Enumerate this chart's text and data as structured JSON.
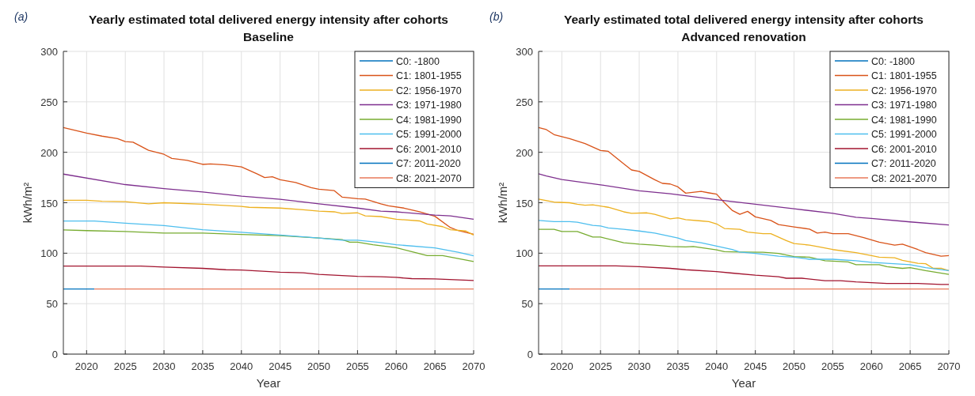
{
  "chart_data": [
    {
      "type": "line",
      "title": "Yearly estimated total delivered energy intensity after cohorts",
      "subtitle": "Baseline",
      "xlabel": "Year",
      "ylabel": "kWh/m²",
      "annotations": [
        "(a)"
      ],
      "xlim": [
        2017,
        2070
      ],
      "xticks": [
        2020,
        2025,
        2030,
        2035,
        2040,
        2045,
        2050,
        2055,
        2060,
        2065,
        2070
      ],
      "ylim": [
        0,
        300
      ],
      "yticks": [
        0,
        50,
        100,
        150,
        200,
        250,
        300
      ],
      "grid": true,
      "legend": "top right",
      "series": [
        {
          "name": "C0: -1800",
          "color": "#0072bd"
        },
        {
          "name": "C1: 1801-1955",
          "color": "#d95319",
          "x": [
            2017,
            2020,
            2022,
            2024,
            2025,
            2026,
            2028,
            2030,
            2031,
            2033,
            2035,
            2036,
            2038,
            2040,
            2042,
            2043,
            2044,
            2045,
            2047,
            2049,
            2050,
            2052,
            2053,
            2055,
            2056,
            2058,
            2059,
            2061,
            2063,
            2065,
            2067,
            2068,
            2070
          ],
          "values": [
            224.6,
            219,
            216,
            213.6,
            210.6,
            210,
            202,
            198,
            194,
            192,
            188,
            188.5,
            187.5,
            185.5,
            178.7,
            175,
            175.7,
            172.8,
            170,
            165,
            163.4,
            162,
            155.6,
            154,
            153.6,
            149,
            147,
            144.7,
            141,
            136.6,
            125.4,
            122.4,
            118.8
          ]
        },
        {
          "name": "C2: 1956-1970",
          "color": "#edb120",
          "x": [
            2017,
            2020,
            2022,
            2025,
            2028,
            2030,
            2035,
            2040,
            2041,
            2045,
            2048,
            2050,
            2052,
            2053,
            2055,
            2056,
            2058,
            2060,
            2063,
            2064,
            2066,
            2067,
            2069,
            2070
          ],
          "values": [
            152.4,
            152.4,
            151.5,
            151,
            149,
            150,
            148.5,
            146.4,
            145.5,
            144.7,
            143,
            141.7,
            141,
            139.3,
            140,
            137,
            136.3,
            133.7,
            132,
            129,
            126.3,
            123.3,
            122,
            118
          ]
        },
        {
          "name": "C3: 1971-1980",
          "color": "#7e2f8e",
          "x": [
            2017,
            2025,
            2030,
            2035,
            2040,
            2045,
            2050,
            2055,
            2058,
            2060,
            2065,
            2067,
            2070
          ],
          "values": [
            178.4,
            168,
            164,
            160.7,
            156.5,
            153.5,
            149,
            144.7,
            141.7,
            141,
            137.8,
            137,
            133.7
          ]
        },
        {
          "name": "C4: 1981-1990",
          "color": "#77ac30",
          "x": [
            2017,
            2020,
            2025,
            2030,
            2035,
            2040,
            2045,
            2050,
            2053,
            2054,
            2055,
            2057,
            2060,
            2062,
            2064,
            2066,
            2070
          ],
          "values": [
            123,
            122.4,
            121.5,
            120,
            120,
            118.5,
            117.4,
            115,
            113.5,
            111,
            111,
            108.4,
            105.5,
            101.5,
            97.6,
            97.6,
            91.7
          ]
        },
        {
          "name": "C5: 1991-2000",
          "color": "#4dbeee",
          "x": [
            2017,
            2021,
            2025,
            2030,
            2035,
            2040,
            2045,
            2050,
            2053,
            2055,
            2058,
            2060,
            2065,
            2068,
            2070
          ],
          "values": [
            131.9,
            131.9,
            129.8,
            127.4,
            123.3,
            120.8,
            118,
            115,
            112.9,
            112.9,
            110.5,
            108.4,
            105.2,
            101,
            97.5
          ]
        },
        {
          "name": "C6: 2001-2010",
          "color": "#a2142f",
          "x": [
            2017,
            2027,
            2030,
            2035,
            2038,
            2040,
            2045,
            2048,
            2050,
            2055,
            2058,
            2060,
            2062,
            2065,
            2070
          ],
          "values": [
            87.2,
            87.2,
            86.2,
            85,
            83.6,
            83.3,
            81.2,
            80.6,
            79,
            77,
            76.6,
            76,
            74.8,
            74.5,
            73
          ]
        },
        {
          "name": "C7: 2011-2020",
          "color": "#0072bd",
          "x": [
            2017,
            2021
          ],
          "values": [
            64.5,
            64.5
          ]
        },
        {
          "name": "C8: 2021-2070",
          "color": "#e8795a",
          "x": [
            2021,
            2070
          ],
          "values": [
            64.5,
            64.5
          ]
        }
      ]
    },
    {
      "type": "line",
      "title": "Yearly estimated total delivered energy intensity after cohorts",
      "subtitle": "Advanced renovation",
      "xlabel": "Year",
      "ylabel": "kWh/m²",
      "annotations": [
        "(b)"
      ],
      "xlim": [
        2017,
        2070
      ],
      "xticks": [
        2020,
        2025,
        2030,
        2035,
        2040,
        2045,
        2050,
        2055,
        2060,
        2065,
        2070
      ],
      "ylim": [
        0,
        300
      ],
      "yticks": [
        0,
        50,
        100,
        150,
        200,
        250,
        300
      ],
      "grid": true,
      "legend": "top right",
      "series": [
        {
          "name": "C0: -1800",
          "color": "#0072bd"
        },
        {
          "name": "C1: 1801-1955",
          "color": "#d95319",
          "x": [
            2017,
            2018,
            2019,
            2021,
            2023,
            2025,
            2026,
            2028,
            2029,
            2030,
            2032,
            2033,
            2034,
            2035,
            2036,
            2038,
            2039,
            2040,
            2041,
            2042,
            2043,
            2044,
            2045,
            2047,
            2048,
            2050,
            2052,
            2053,
            2054,
            2055,
            2057,
            2059,
            2061,
            2063,
            2064,
            2066,
            2067,
            2069,
            2070
          ],
          "values": [
            224.6,
            222.5,
            217.5,
            213.6,
            208.6,
            201.8,
            201,
            188.5,
            182.5,
            181,
            172.8,
            169.2,
            168.6,
            165.7,
            159.5,
            161.2,
            159.8,
            158.5,
            150,
            142.5,
            138.5,
            141.5,
            136,
            132.5,
            128.4,
            126,
            123.9,
            120,
            121,
            119.4,
            119.4,
            115.5,
            111,
            108,
            109,
            103.6,
            100.6,
            97,
            97.6
          ]
        },
        {
          "name": "C2: 1956-1970",
          "color": "#edb120",
          "x": [
            2017,
            2019,
            2021,
            2022,
            2023,
            2024,
            2026,
            2028,
            2029,
            2031,
            2032,
            2034,
            2035,
            2036,
            2038,
            2039,
            2040,
            2041,
            2043,
            2044,
            2046,
            2047,
            2049,
            2050,
            2052,
            2053,
            2055,
            2058,
            2060,
            2061,
            2063,
            2064,
            2066,
            2067,
            2068,
            2069,
            2070
          ],
          "values": [
            153.6,
            150.6,
            150,
            148.5,
            147.6,
            148,
            145.5,
            141,
            139.5,
            140,
            138.6,
            134,
            135,
            133.3,
            132,
            131.3,
            129,
            124.5,
            123.6,
            121,
            119.4,
            119.4,
            112.5,
            109.5,
            108,
            106.6,
            103.6,
            100.6,
            97.6,
            96,
            95.5,
            93,
            90,
            89.6,
            85,
            85,
            82.7
          ]
        },
        {
          "name": "C3: 1971-1980",
          "color": "#7e2f8e",
          "x": [
            2017,
            2018,
            2020,
            2025,
            2030,
            2034,
            2040,
            2045,
            2050,
            2055,
            2058,
            2060,
            2065,
            2070
          ],
          "values": [
            178.6,
            176.6,
            173,
            167.8,
            161.8,
            158.9,
            153,
            148.5,
            144,
            139.5,
            135.6,
            134.4,
            131,
            128
          ]
        },
        {
          "name": "C4: 1981-1990",
          "color": "#77ac30",
          "x": [
            2017,
            2019,
            2020,
            2022,
            2024,
            2025,
            2028,
            2030,
            2032,
            2034,
            2036,
            2037,
            2040,
            2041,
            2043,
            2046,
            2048,
            2050,
            2052,
            2054,
            2055,
            2057,
            2058,
            2061,
            2062,
            2064,
            2065,
            2067,
            2070
          ],
          "values": [
            123.6,
            123.6,
            121.5,
            121.5,
            116,
            116,
            110.4,
            109,
            108,
            106.6,
            106.3,
            106.6,
            103.3,
            101.5,
            101.2,
            101,
            99.7,
            96.7,
            96,
            92.5,
            92.2,
            91.3,
            88.6,
            88.6,
            86.6,
            85,
            85.7,
            82.7,
            79
          ]
        },
        {
          "name": "C5: 1991-2000",
          "color": "#4dbeee",
          "x": [
            2017,
            2019,
            2021,
            2022,
            2024,
            2025,
            2026,
            2028,
            2030,
            2032,
            2035,
            2036,
            2038,
            2040,
            2042,
            2043,
            2045,
            2048,
            2050,
            2052,
            2055,
            2058,
            2060,
            2062,
            2065,
            2067,
            2070
          ],
          "values": [
            132.4,
            131.3,
            131.3,
            130.7,
            127.6,
            127,
            125,
            123.6,
            122,
            120,
            115,
            112.5,
            110.4,
            107,
            103.6,
            101.2,
            99.7,
            97,
            96,
            94,
            94,
            92.5,
            91,
            90,
            88.6,
            85.7,
            82.7
          ]
        },
        {
          "name": "C6: 2001-2010",
          "color": "#a2142f",
          "x": [
            2017,
            2027,
            2030,
            2034,
            2036,
            2040,
            2042,
            2045,
            2048,
            2049,
            2051,
            2054,
            2056,
            2058,
            2062,
            2066,
            2069,
            2070
          ],
          "values": [
            87.5,
            87.5,
            86.6,
            85,
            83.6,
            81.8,
            80.3,
            78.2,
            76.7,
            75.2,
            75.2,
            72.8,
            72.8,
            71.6,
            70,
            70,
            69,
            69
          ]
        },
        {
          "name": "C7: 2011-2020",
          "color": "#0072bd",
          "x": [
            2017,
            2021
          ],
          "values": [
            64.5,
            64.5
          ]
        },
        {
          "name": "C8: 2021-2070",
          "color": "#e8795a",
          "x": [
            2021,
            2070
          ],
          "values": [
            64.5,
            64.5
          ]
        }
      ]
    }
  ]
}
